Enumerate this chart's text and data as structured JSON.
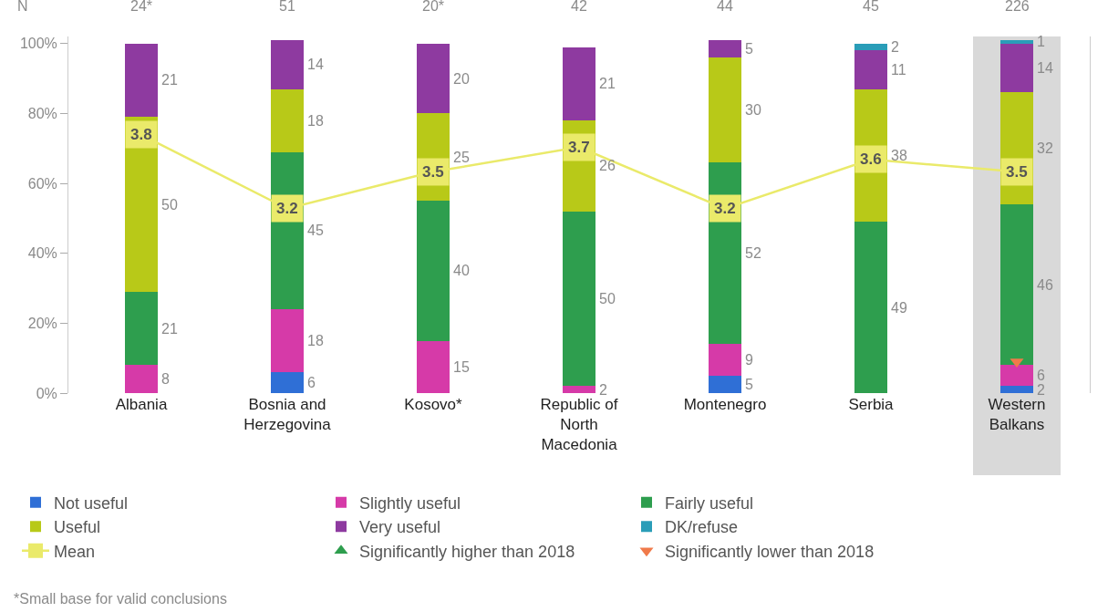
{
  "chart_data": {
    "type": "bar",
    "stacked": true,
    "categories": [
      "Albania",
      "Bosnia and Herzegovina",
      "Kosovo*",
      "Republic of North Macedonia",
      "Montenegro",
      "Serbia",
      "Western Balkans"
    ],
    "series": [
      {
        "name": "Not useful",
        "color": "#2f6fd6",
        "values": [
          null,
          6,
          null,
          null,
          5,
          null,
          2
        ],
        "value_labels": [
          null,
          "6",
          null,
          null,
          "5",
          null,
          "2"
        ]
      },
      {
        "name": "Slightly useful",
        "color": "#d63aa8",
        "values": [
          8,
          18,
          15,
          2,
          9,
          null,
          6
        ],
        "value_labels": [
          "8",
          "18",
          "15",
          "2",
          "9",
          null,
          "6"
        ]
      },
      {
        "name": "Fairly useful",
        "color": "#2e9e4e",
        "values": [
          21,
          45,
          40,
          50,
          52,
          49,
          46
        ],
        "value_labels": [
          "21",
          "45",
          "40",
          "50",
          "52",
          "49",
          "46"
        ]
      },
      {
        "name": "Useful",
        "color": "#b8c918",
        "values": [
          50,
          18,
          25,
          26,
          30,
          38,
          32
        ],
        "value_labels": [
          "50",
          "18",
          "25",
          "26",
          "30",
          "38",
          "32"
        ]
      },
      {
        "name": "Very useful",
        "color": "#8e3aa0",
        "values": [
          21,
          14,
          20,
          21,
          5,
          11,
          14
        ],
        "value_labels": [
          "21",
          "14",
          "20",
          "21",
          "5",
          "11",
          "14"
        ]
      },
      {
        "name": "DK/refuse",
        "color": "#2a9db8",
        "values": [
          null,
          null,
          null,
          null,
          null,
          2,
          1
        ],
        "value_labels": [
          null,
          null,
          null,
          null,
          null,
          "2",
          "1"
        ]
      },
      {
        "name": "Mean",
        "type": "line",
        "axis": "y2",
        "color": "#eaea6a",
        "marker": "square",
        "values": [
          3.8,
          3.2,
          3.5,
          3.7,
          3.2,
          3.6,
          3.5
        ],
        "value_labels": [
          "3.8",
          "3.2",
          "3.5",
          "3.7",
          "3.2",
          "3.6",
          "3.5"
        ]
      },
      {
        "name": "Significantly higher than 2018",
        "type": "scatter",
        "marker": "triangle",
        "color": "#2e9e4e",
        "values": [
          null,
          null,
          null,
          null,
          null,
          null,
          null
        ]
      },
      {
        "name": "Significantly lower than 2018",
        "type": "scatter",
        "marker": "triangle-down",
        "color": "#f07a4a",
        "values": [
          null,
          null,
          null,
          null,
          null,
          null,
          9
        ]
      }
    ],
    "ylim": [
      0,
      102
    ],
    "yticks": [
      {
        "value": 0,
        "label": "0%"
      },
      {
        "value": 20,
        "label": "20%"
      },
      {
        "value": 40,
        "label": "40%"
      },
      {
        "value": 60,
        "label": "60%"
      },
      {
        "value": 80,
        "label": "80%"
      },
      {
        "value": 100,
        "label": "100%"
      }
    ],
    "y2lim": [
      1.7,
      4.6
    ],
    "grid": false,
    "legend": "bottom",
    "bands": [
      {
        "axis": "x",
        "from": "Western Balkans",
        "to": "Western Balkans",
        "color": "#d9d9d9"
      }
    ],
    "annotations": [
      "N",
      "24*",
      "51",
      "20*",
      "42",
      "44",
      "45",
      "226",
      "*Small base for valid conclusions"
    ]
  }
}
